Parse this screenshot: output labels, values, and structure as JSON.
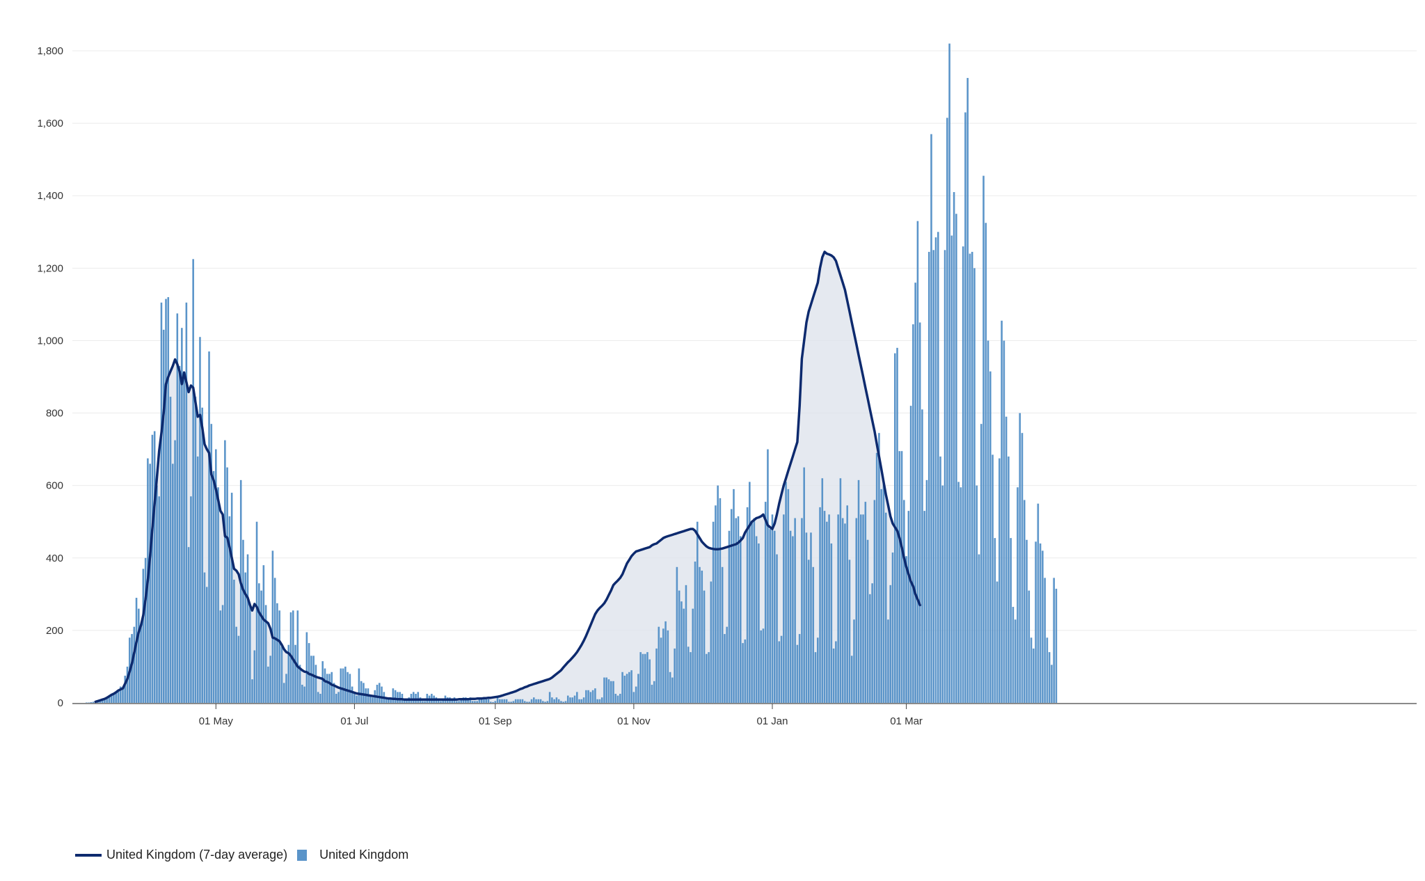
{
  "colors": {
    "bar": "#5a94c9",
    "line": "#0d2a6e",
    "area": "#dfe4ec",
    "grid": "#ebebeb",
    "axis": "#444444"
  },
  "legend": {
    "line_label": "United Kingdom (7-day average)",
    "bar_label": "United Kingdom"
  },
  "chart_data": {
    "type": "bar",
    "title": "",
    "xlabel": "",
    "ylabel": "",
    "ylim": [
      0,
      1800
    ],
    "grid": true,
    "legend_position": "bottom-left",
    "yticks": [
      0,
      200,
      400,
      600,
      800,
      1000,
      1200,
      1400,
      1600,
      1800
    ],
    "ytick_labels": [
      "0",
      "200",
      "400",
      "600",
      "800",
      "1,000",
      "1,200",
      "1,400",
      "1,600",
      "1,800"
    ],
    "xticks": [
      {
        "date": "2020-05-01",
        "label": "01 May"
      },
      {
        "date": "2020-07-01",
        "label": "01 Jul"
      },
      {
        "date": "2020-09-01",
        "label": "01 Sep"
      },
      {
        "date": "2020-11-01",
        "label": "01 Nov"
      },
      {
        "date": "2021-01-01",
        "label": "01 Jan"
      },
      {
        "date": "2021-03-01",
        "label": "01 Mar"
      }
    ],
    "series": [
      {
        "name": "United Kingdom",
        "kind": "bar",
        "start_date": "2020-03-05",
        "values": [
          1,
          1,
          2,
          3,
          5,
          6,
          8,
          10,
          12,
          14,
          18,
          20,
          25,
          30,
          35,
          45,
          40,
          75,
          100,
          180,
          190,
          210,
          290,
          260,
          215,
          370,
          400,
          675,
          660,
          740,
          750,
          600,
          570,
          1105,
          1030,
          1115,
          1120,
          845,
          660,
          725,
          1075,
          930,
          1035,
          915,
          1105,
          430,
          570,
          1225,
          845,
          680,
          1010,
          815,
          360,
          320,
          970,
          770,
          640,
          700,
          595,
          255,
          270,
          725,
          650,
          515,
          580,
          340,
          210,
          185,
          615,
          450,
          360,
          410,
          275,
          65,
          145,
          500,
          330,
          310,
          380,
          270,
          100,
          130,
          420,
          345,
          275,
          255,
          155,
          55,
          80,
          160,
          250,
          255,
          160,
          255,
          105,
          50,
          45,
          195,
          165,
          130,
          130,
          105,
          30,
          25,
          115,
          95,
          80,
          80,
          85,
          55,
          25,
          30,
          95,
          95,
          100,
          85,
          80,
          45,
          25,
          20,
          95,
          60,
          55,
          40,
          40,
          20,
          15,
          35,
          50,
          55,
          45,
          30,
          15,
          10,
          15,
          40,
          35,
          30,
          30,
          25,
          10,
          8,
          15,
          25,
          30,
          25,
          30,
          15,
          5,
          5,
          25,
          20,
          25,
          20,
          15,
          8,
          5,
          10,
          20,
          15,
          15,
          10,
          15,
          5,
          5,
          10,
          15,
          15,
          10,
          15,
          5,
          5,
          5,
          15,
          10,
          10,
          10,
          10,
          3,
          2,
          5,
          15,
          10,
          10,
          10,
          10,
          3,
          3,
          5,
          10,
          10,
          10,
          10,
          5,
          3,
          3,
          10,
          15,
          10,
          10,
          10,
          5,
          3,
          5,
          30,
          15,
          10,
          15,
          10,
          5,
          3,
          5,
          20,
          15,
          15,
          20,
          30,
          10,
          10,
          15,
          35,
          35,
          30,
          35,
          40,
          10,
          10,
          15,
          70,
          70,
          65,
          60,
          60,
          25,
          20,
          25,
          85,
          75,
          80,
          85,
          90,
          30,
          45,
          80,
          140,
          135,
          135,
          140,
          120,
          50,
          60,
          150,
          210,
          180,
          205,
          225,
          200,
          85,
          70,
          150,
          375,
          310,
          280,
          260,
          325,
          155,
          140,
          260,
          390,
          500,
          375,
          365,
          310,
          135,
          140,
          335,
          500,
          545,
          600,
          565,
          375,
          190,
          210,
          475,
          535,
          590,
          510,
          515,
          460,
          165,
          175,
          540,
          610,
          500,
          510,
          460,
          440,
          200,
          205,
          555,
          700,
          480,
          520,
          475,
          410,
          170,
          185,
          520,
          610,
          590,
          475,
          460,
          510,
          160,
          190,
          510,
          650,
          470,
          395,
          470,
          375,
          140,
          180,
          540,
          620,
          530,
          500,
          520,
          440,
          150,
          170,
          520,
          620,
          510,
          495,
          545,
          395,
          130,
          230,
          510,
          615,
          520,
          520,
          555,
          450,
          300,
          330,
          560,
          690,
          745,
          590,
          610,
          525,
          230,
          325,
          415,
          965,
          980,
          695,
          695,
          560,
          405,
          530,
          820,
          1045,
          1160,
          1330,
          1050,
          810,
          530,
          615,
          1245,
          1570,
          1250,
          1285,
          1300,
          680,
          600,
          1250,
          1615,
          1820,
          1290,
          1410,
          1350,
          610,
          595,
          1260,
          1630,
          1725,
          1240,
          1245,
          1200,
          600,
          410,
          770,
          1455,
          1325,
          1000,
          915,
          685,
          455,
          335,
          675,
          1055,
          1000,
          790,
          680,
          455,
          265,
          230,
          595,
          800,
          745,
          560,
          450,
          310,
          180,
          150,
          445,
          550,
          440,
          420,
          345,
          180,
          140,
          105,
          345,
          315
        ]
      },
      {
        "name": "United Kingdom (7-day average)",
        "kind": "line",
        "start_date": "2020-03-09",
        "values": [
          3,
          5,
          7,
          9,
          11,
          14,
          18,
          22,
          25,
          29,
          34,
          37,
          40,
          53,
          66,
          86,
          108,
          138,
          168,
          195,
          214,
          242,
          285,
          338,
          406,
          480,
          550,
          620,
          695,
          745,
          800,
          880,
          900,
          915,
          930,
          948,
          935,
          915,
          880,
          912,
          885,
          858,
          876,
          870,
          830,
          790,
          795,
          760,
          714,
          700,
          690,
          630,
          615,
          590,
          560,
          530,
          520,
          460,
          456,
          430,
          400,
          370,
          365,
          355,
          330,
          312,
          300,
          290,
          270,
          255,
          273,
          265,
          250,
          240,
          230,
          225,
          220,
          205,
          180,
          178,
          174,
          170,
          160,
          148,
          140,
          137,
          130,
          120,
          110,
          100,
          95,
          90,
          86,
          85,
          80,
          78,
          75,
          72,
          70,
          68,
          66,
          60,
          58,
          55,
          50,
          48,
          45,
          42,
          40,
          38,
          36,
          34,
          32,
          30,
          28,
          26,
          25,
          24,
          23,
          22,
          21,
          20,
          19,
          18,
          17,
          16,
          15,
          14,
          13,
          12,
          12,
          11,
          11,
          10,
          10,
          10,
          9,
          9,
          9,
          9,
          9,
          9,
          9,
          9,
          9,
          9,
          9,
          9,
          9,
          9,
          9,
          9,
          9,
          9,
          9,
          9,
          9,
          9,
          9,
          9,
          10,
          10,
          10,
          10,
          10,
          11,
          11,
          11,
          12,
          12,
          12,
          13,
          13,
          14,
          14,
          15,
          16,
          17,
          18,
          20,
          22,
          24,
          26,
          28,
          30,
          32,
          35,
          38,
          40,
          43,
          45,
          48,
          50,
          52,
          54,
          56,
          58,
          60,
          62,
          64,
          66,
          70,
          75,
          80,
          85,
          90,
          98,
          105,
          112,
          118,
          125,
          132,
          140,
          150,
          160,
          172,
          185,
          200,
          215,
          230,
          245,
          255,
          262,
          268,
          275,
          285,
          298,
          310,
          325,
          332,
          338,
          345,
          355,
          370,
          385,
          395,
          405,
          412,
          418,
          420,
          422,
          424,
          426,
          428,
          430,
          435,
          438,
          440,
          445,
          450,
          455,
          458,
          460,
          462,
          464,
          466,
          468,
          470,
          472,
          474,
          476,
          478,
          480,
          480,
          475,
          465,
          455,
          445,
          438,
          432,
          428,
          426,
          425,
          424,
          424,
          425,
          426,
          428,
          430,
          432,
          434,
          436,
          438,
          442,
          448,
          455,
          470,
          480,
          490,
          500,
          505,
          510,
          512,
          515,
          520,
          505,
          490,
          485,
          480,
          495,
          520,
          550,
          575,
          600,
          620,
          640,
          660,
          680,
          700,
          720,
          820,
          950,
          1000,
          1050,
          1080,
          1100,
          1120,
          1140,
          1160,
          1200,
          1230,
          1245,
          1240,
          1238,
          1235,
          1230,
          1220,
          1200,
          1180,
          1160,
          1140,
          1110,
          1080,
          1050,
          1020,
          990,
          960,
          930,
          900,
          870,
          840,
          810,
          780,
          750,
          715,
          680,
          645,
          610,
          575,
          545,
          515,
          495,
          485,
          475,
          455,
          430,
          400,
          375,
          355,
          335,
          322,
          300,
          285,
          270
        ]
      }
    ]
  }
}
